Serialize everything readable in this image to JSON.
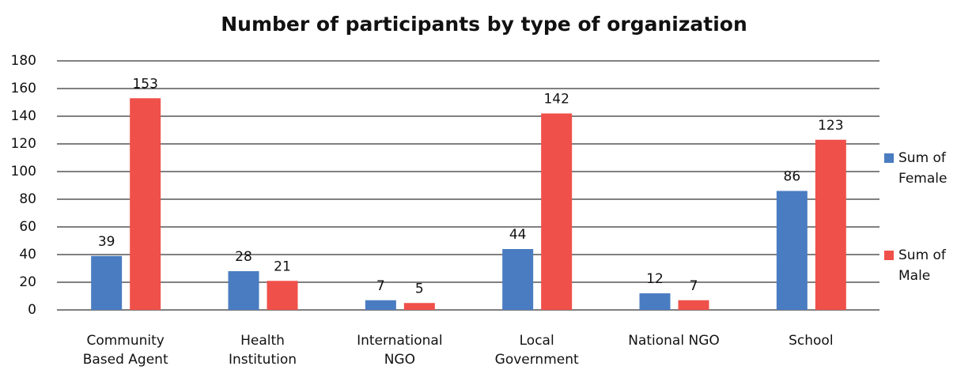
{
  "chart_data": {
    "type": "bar",
    "title": "Number of participants by type of organization",
    "categories": [
      "Community Based Agent",
      "Health Institution",
      "International NGO",
      "Local Government",
      "National NGO",
      "School"
    ],
    "series": [
      {
        "name": "Sum of Female",
        "color": "#4a7cc1",
        "values": [
          39,
          28,
          7,
          44,
          12,
          86
        ]
      },
      {
        "name": "Sum of Male",
        "color": "#f0504a",
        "values": [
          153,
          21,
          5,
          142,
          7,
          123
        ]
      }
    ],
    "ylim": [
      0,
      180
    ],
    "yticks": [
      0,
      20,
      40,
      60,
      80,
      100,
      120,
      140,
      160,
      180
    ],
    "grid": true,
    "legend": "right"
  }
}
